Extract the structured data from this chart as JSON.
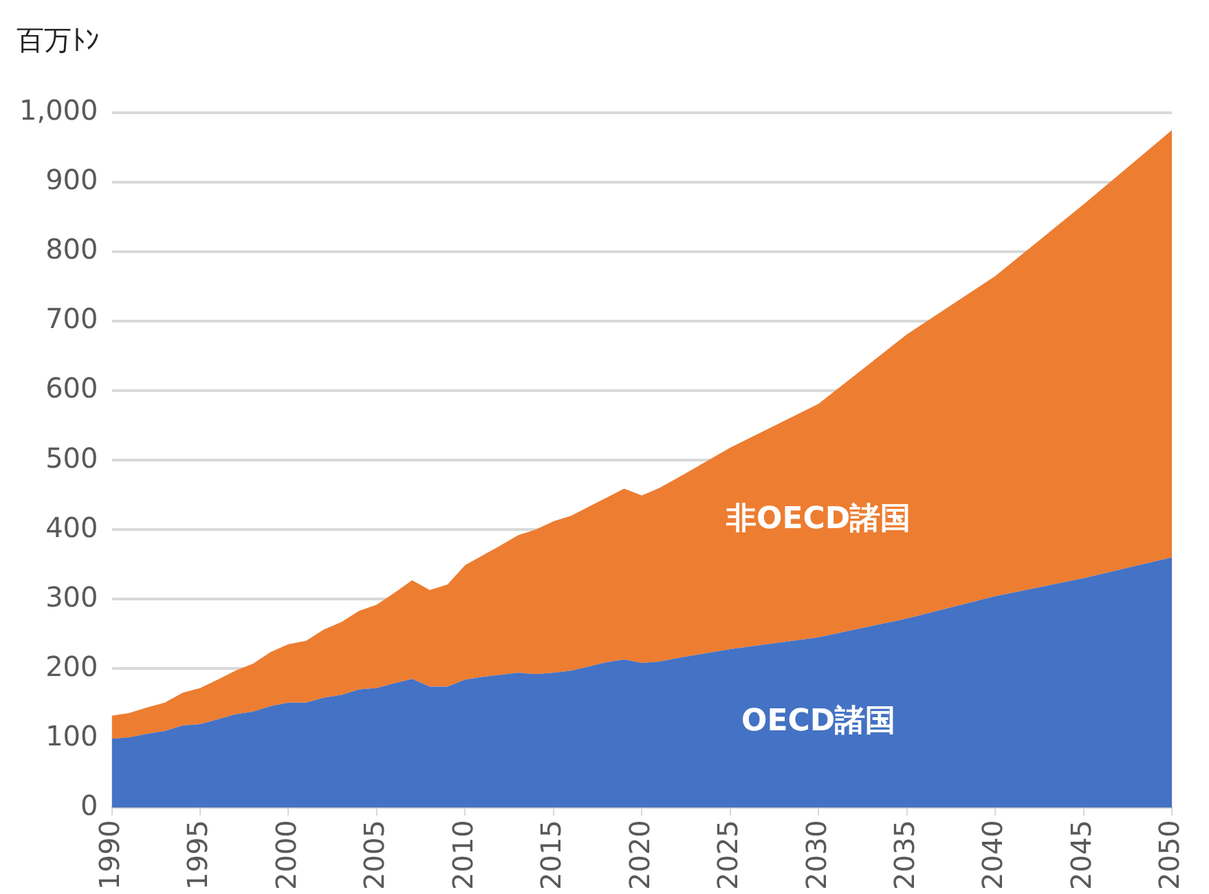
{
  "chart_data": {
    "type": "area",
    "stacked": true,
    "ylabel": "百万ﾄﾝ",
    "x": [
      1990,
      1991,
      1992,
      1993,
      1994,
      1995,
      1996,
      1997,
      1998,
      1999,
      2000,
      2001,
      2002,
      2003,
      2004,
      2005,
      2006,
      2007,
      2008,
      2009,
      2010,
      2011,
      2012,
      2013,
      2014,
      2015,
      2016,
      2017,
      2018,
      2019,
      2020,
      2021,
      2022,
      2025,
      2030,
      2035,
      2040,
      2045,
      2050
    ],
    "series": [
      {
        "name": "OECD諸国",
        "color": "#4472c4",
        "values": [
          99,
          101,
          106,
          110,
          118,
          120,
          127,
          134,
          138,
          146,
          151,
          151,
          158,
          162,
          170,
          172,
          179,
          185,
          174,
          174,
          184,
          188,
          191,
          194,
          192,
          194,
          197,
          203,
          209,
          213,
          208,
          210,
          215,
          228,
          245,
          272,
          304,
          330,
          360
        ]
      },
      {
        "name": "非OECD諸国",
        "color": "#ed7d31",
        "values": [
          33,
          35,
          38,
          41,
          47,
          52,
          57,
          63,
          69,
          78,
          84,
          89,
          98,
          105,
          113,
          120,
          130,
          142,
          139,
          147,
          165,
          175,
          186,
          198,
          208,
          218,
          223,
          230,
          237,
          246,
          241,
          250,
          259,
          290,
          336,
          409,
          461,
          538,
          615
        ]
      }
    ],
    "xlim": [
      1990,
      2050
    ],
    "xticks": [
      1990,
      1995,
      2000,
      2005,
      2010,
      2015,
      2020,
      2025,
      2030,
      2035,
      2040,
      2045,
      2050
    ],
    "ylim": [
      0,
      1000
    ],
    "yticks": [
      0,
      100,
      200,
      300,
      400,
      500,
      600,
      700,
      800,
      900,
      {
        "value": 1000,
        "label": "1,000"
      }
    ],
    "grid": "y",
    "legend": false
  }
}
